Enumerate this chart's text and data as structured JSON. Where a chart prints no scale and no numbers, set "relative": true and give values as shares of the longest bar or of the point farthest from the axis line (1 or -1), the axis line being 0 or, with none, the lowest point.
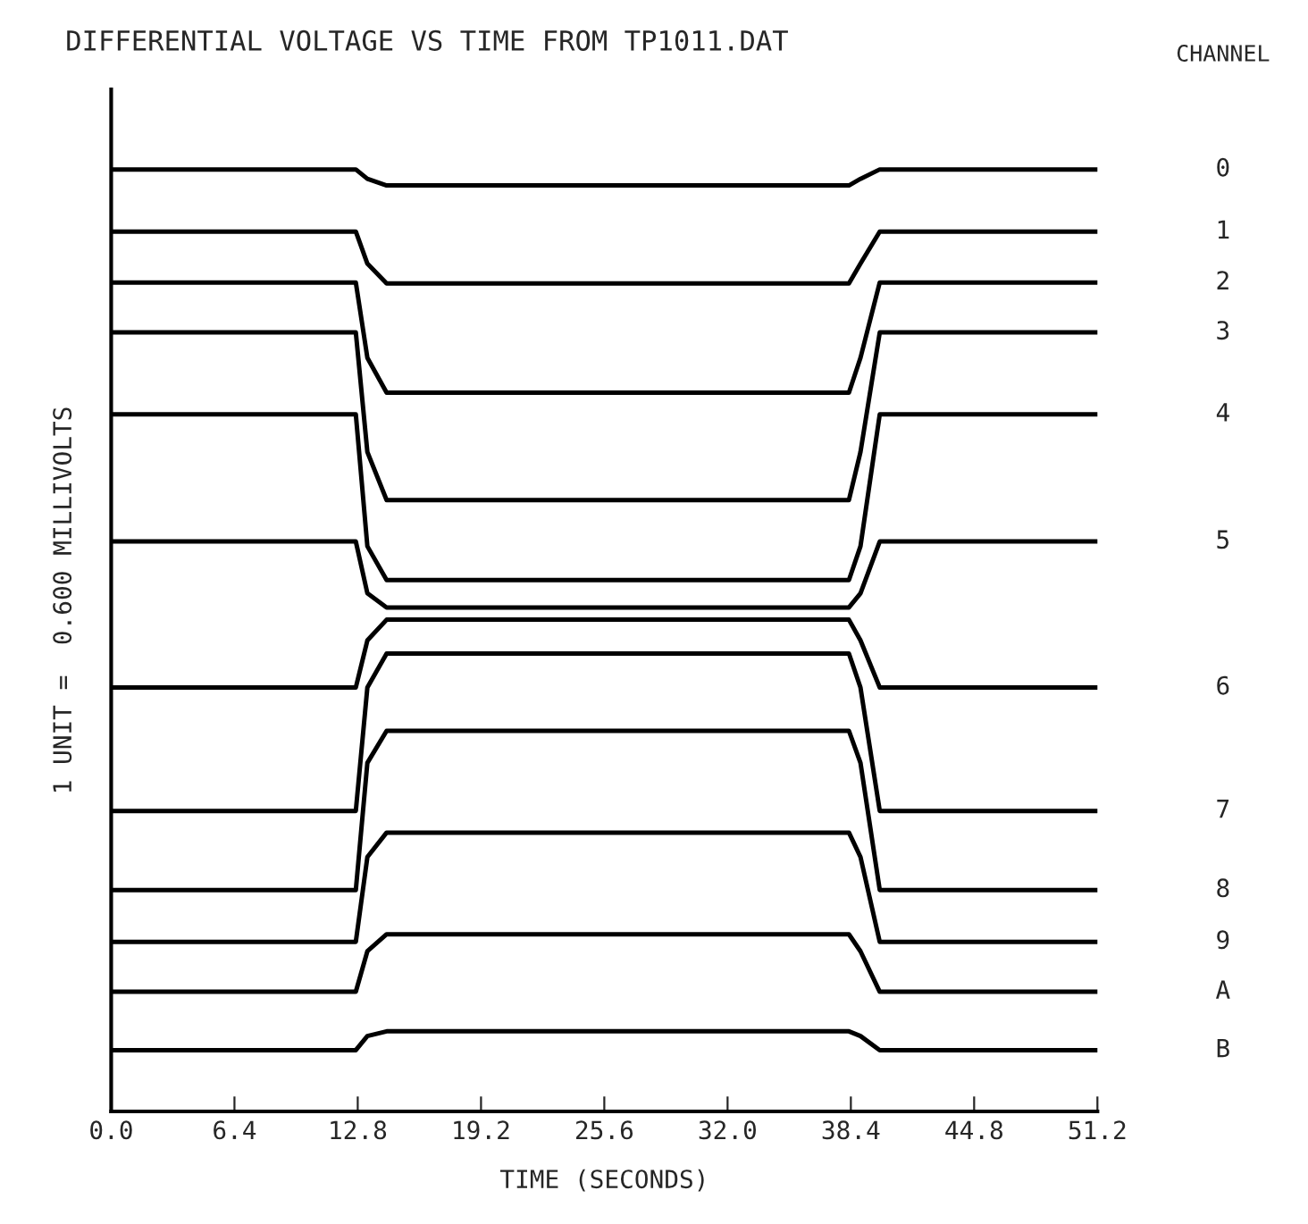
{
  "chart_data": {
    "type": "line",
    "title": "DIFFERENTIAL VOLTAGE VS TIME FROM TP1011.DAT",
    "xlabel": "TIME (SECONDS)",
    "ylabel": "1 UNIT =  0.600 MILLIVOLTS",
    "legend_title": "CHANNEL",
    "relative": true,
    "grid": false,
    "marker": "none",
    "line_style": "solid",
    "x": [
      0,
      12.7,
      13.3,
      14.3,
      38.3,
      38.9,
      39.9,
      51.2
    ],
    "xlim": [
      0,
      51.2
    ],
    "xticks": [
      {
        "value": 0,
        "label": "0.0"
      },
      6.4,
      12.8,
      19.2,
      25.6,
      {
        "value": 32,
        "label": "32.0"
      },
      38.4,
      44.8,
      51.2
    ],
    "series": [
      {
        "name": "0",
        "color": "#000000",
        "values": [
          1.0,
          1.0,
          0.99,
          0.983,
          0.983,
          0.99,
          1.0,
          1.0
        ]
      },
      {
        "name": "1",
        "color": "#000000",
        "values": [
          0.934,
          0.934,
          0.9,
          0.879,
          0.879,
          0.9,
          0.934,
          0.934
        ]
      },
      {
        "name": "2",
        "color": "#000000",
        "values": [
          0.88,
          0.88,
          0.8,
          0.763,
          0.763,
          0.8,
          0.88,
          0.88
        ]
      },
      {
        "name": "3",
        "color": "#000000",
        "values": [
          0.827,
          0.827,
          0.7,
          0.649,
          0.649,
          0.7,
          0.827,
          0.827
        ]
      },
      {
        "name": "4",
        "color": "#000000",
        "values": [
          0.74,
          0.74,
          0.6,
          0.564,
          0.564,
          0.6,
          0.74,
          0.74
        ]
      },
      {
        "name": "5",
        "color": "#000000",
        "values": [
          0.605,
          0.605,
          0.55,
          0.535,
          0.535,
          0.55,
          0.605,
          0.605
        ]
      },
      {
        "name": "6",
        "color": "#000000",
        "values": [
          0.45,
          0.45,
          0.5,
          0.522,
          0.522,
          0.5,
          0.45,
          0.45
        ]
      },
      {
        "name": "7",
        "color": "#000000",
        "values": [
          0.319,
          0.319,
          0.45,
          0.486,
          0.486,
          0.45,
          0.319,
          0.319
        ]
      },
      {
        "name": "8",
        "color": "#000000",
        "values": [
          0.235,
          0.235,
          0.37,
          0.404,
          0.404,
          0.37,
          0.235,
          0.235
        ]
      },
      {
        "name": "9",
        "color": "#000000",
        "values": [
          0.18,
          0.18,
          0.27,
          0.296,
          0.296,
          0.27,
          0.18,
          0.18
        ]
      },
      {
        "name": "A",
        "color": "#000000",
        "values": [
          0.127,
          0.127,
          0.17,
          0.188,
          0.188,
          0.17,
          0.127,
          0.127
        ]
      },
      {
        "name": "B",
        "color": "#000000",
        "values": [
          0.065,
          0.065,
          0.08,
          0.085,
          0.085,
          0.08,
          0.065,
          0.065
        ]
      }
    ]
  }
}
